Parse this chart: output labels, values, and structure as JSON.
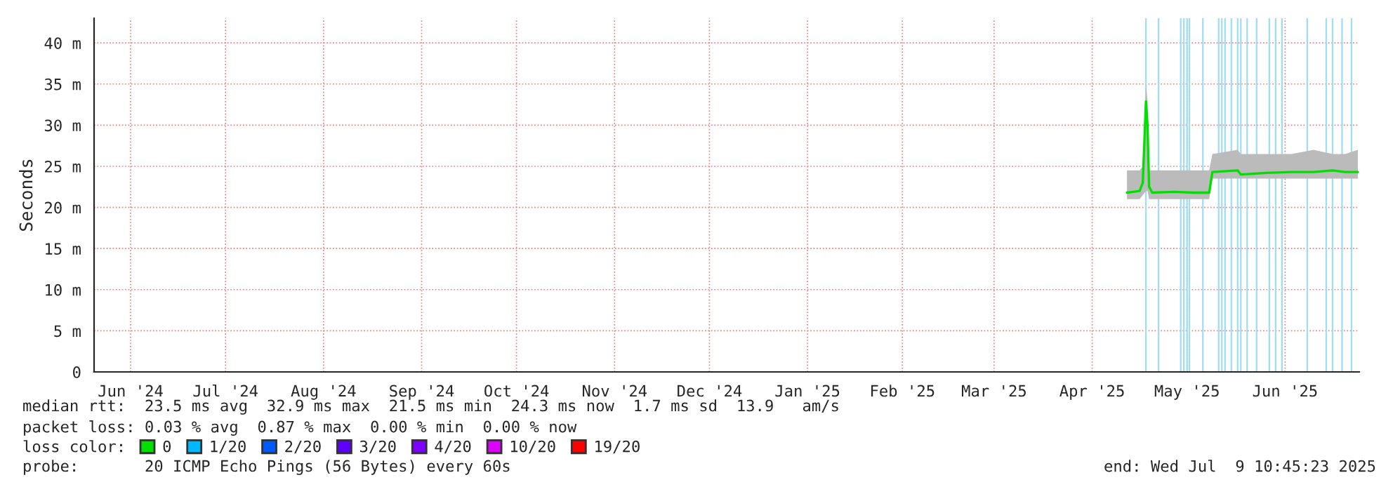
{
  "chart_data": {
    "type": "line",
    "ylabel": "Seconds",
    "x": [
      "2025-04-27",
      "2025-04-29",
      "2025-05-01",
      "2025-05-02",
      "2025-05-03",
      "2025-05-03T12:00",
      "2025-05-04",
      "2025-05-05",
      "2025-05-12",
      "2025-05-18",
      "2025-05-23",
      "2025-05-24",
      "2025-06-01",
      "2025-06-02",
      "2025-06-10",
      "2025-06-18",
      "2025-06-25",
      "2025-07-01",
      "2025-07-05",
      "2025-07-09"
    ],
    "series": [
      {
        "name": "0",
        "color": "#00e000",
        "values": [
          21.8,
          21.9,
          22,
          23,
          32.9,
          30,
          22.5,
          21.8,
          21.9,
          21.8,
          21.8,
          24.3,
          24.5,
          24,
          24.2,
          24.3,
          24.3,
          24.5,
          24.3,
          24.3
        ],
        "lower": [
          21,
          21,
          21,
          21.5,
          22,
          22,
          21,
          21,
          21,
          21,
          21,
          23.5,
          23.5,
          23.5,
          23.5,
          23.5,
          23.5,
          23.5,
          23.5,
          23.5
        ],
        "upper": [
          24.5,
          24.5,
          24.5,
          25,
          35,
          33,
          24.5,
          24.5,
          24.5,
          24.5,
          24.5,
          26.5,
          27,
          26.5,
          26.5,
          26.5,
          27,
          26.5,
          26.5,
          27
        ]
      },
      {
        "name": "1/20",
        "color": "#00b8ff",
        "values": [
          null,
          null,
          null,
          null,
          null,
          null,
          null,
          null,
          null,
          null,
          null,
          null,
          null,
          null,
          null,
          null,
          null,
          null,
          null,
          null
        ]
      },
      {
        "name": "2/20",
        "color": "#0059ff",
        "values": [
          null,
          null,
          null,
          null,
          null,
          null,
          null,
          null,
          null,
          null,
          null,
          null,
          null,
          null,
          null,
          null,
          null,
          null,
          null,
          null
        ]
      },
      {
        "name": "3/20",
        "color": "#5e00ff",
        "values": [
          null,
          null,
          null,
          null,
          null,
          null,
          null,
          null,
          null,
          null,
          null,
          null,
          null,
          null,
          null,
          null,
          null,
          null,
          null,
          null
        ]
      },
      {
        "name": "4/20",
        "color": "#7e00ff",
        "values": [
          null,
          null,
          null,
          null,
          null,
          null,
          null,
          null,
          null,
          null,
          null,
          null,
          null,
          null,
          null,
          null,
          null,
          null,
          null,
          null
        ]
      },
      {
        "name": "10/20",
        "color": "#dd00ff",
        "values": [
          null,
          null,
          null,
          null,
          null,
          null,
          null,
          null,
          null,
          null,
          null,
          null,
          null,
          null,
          null,
          null,
          null,
          null,
          null,
          null
        ]
      },
      {
        "name": "19/20",
        "color": "#ff0000",
        "values": [
          null,
          null,
          null,
          null,
          null,
          null,
          null,
          null,
          null,
          null,
          null,
          null,
          null,
          null,
          null,
          null,
          null,
          null,
          null,
          null
        ]
      }
    ],
    "legend_title": "loss color:",
    "legend": "bottom left",
    "xlim": [
      "2024-06-04T10:45",
      "2025-07-09T10:45"
    ],
    "xticks": [
      {
        "value": "2024-06-16",
        "label": "Jun '24"
      },
      {
        "value": "2024-07-16",
        "label": "Jul '24"
      },
      {
        "value": "2024-08-16",
        "label": "Aug '24"
      },
      {
        "value": "2024-09-16",
        "label": "Sep '24"
      },
      {
        "value": "2024-10-16",
        "label": "Oct '24"
      },
      {
        "value": "2024-11-16",
        "label": "Nov '24"
      },
      {
        "value": "2024-12-16",
        "label": "Dec '24"
      },
      {
        "value": "2025-01-16",
        "label": "Jan '25"
      },
      {
        "value": "2025-02-15",
        "label": "Feb '25"
      },
      {
        "value": "2025-03-16",
        "label": "Mar '25"
      },
      {
        "value": "2025-04-16",
        "label": "Apr '25"
      },
      {
        "value": "2025-05-16",
        "label": "May '25"
      },
      {
        "value": "2025-06-16",
        "label": "Jun '25"
      }
    ],
    "ylim": [
      0,
      43
    ],
    "yticks": [
      0,
      {
        "value": 5,
        "label": "5 m"
      },
      {
        "value": 10,
        "label": "10 m"
      },
      {
        "value": 15,
        "label": "15 m"
      },
      {
        "value": 20,
        "label": "20 m"
      },
      {
        "value": 25,
        "label": "25 m"
      },
      {
        "value": 30,
        "label": "30 m"
      },
      {
        "value": 35,
        "label": "35 m"
      },
      {
        "value": 40,
        "label": "40 m"
      }
    ],
    "grid": true,
    "line_style": "solid",
    "ref_lines": [
      {
        "axis": "x",
        "value": "2025-05-03",
        "color": "#9fdcf5"
      },
      {
        "axis": "x",
        "value": "2025-05-07",
        "color": "#9fdcf5"
      },
      {
        "axis": "x",
        "value": "2025-05-14",
        "color": "#9fdcf5"
      },
      {
        "axis": "x",
        "value": "2025-05-15",
        "color": "#9fdcf5"
      },
      {
        "axis": "x",
        "value": "2025-05-16",
        "color": "#9fdcf5"
      },
      {
        "axis": "x",
        "value": "2025-05-16T18:00",
        "color": "#9fdcf5"
      },
      {
        "axis": "x",
        "value": "2025-05-21",
        "color": "#9fdcf5"
      },
      {
        "axis": "x",
        "value": "2025-05-26",
        "color": "#9fdcf5"
      },
      {
        "axis": "x",
        "value": "2025-05-27",
        "color": "#9fdcf5"
      },
      {
        "axis": "x",
        "value": "2025-05-28",
        "color": "#9fdcf5"
      },
      {
        "axis": "x",
        "value": "2025-05-30",
        "color": "#9fdcf5"
      },
      {
        "axis": "x",
        "value": "2025-06-01",
        "color": "#9fdcf5"
      },
      {
        "axis": "x",
        "value": "2025-06-02",
        "color": "#9fdcf5"
      },
      {
        "axis": "x",
        "value": "2025-06-04",
        "color": "#9fdcf5"
      },
      {
        "axis": "x",
        "value": "2025-06-07",
        "color": "#9fdcf5"
      },
      {
        "axis": "x",
        "value": "2025-06-11",
        "color": "#9fdcf5"
      },
      {
        "axis": "x",
        "value": "2025-06-13",
        "color": "#9fdcf5"
      },
      {
        "axis": "x",
        "value": "2025-06-15",
        "color": "#9fdcf5"
      },
      {
        "axis": "x",
        "value": "2025-06-23",
        "color": "#9fdcf5"
      },
      {
        "axis": "x",
        "value": "2025-06-29",
        "color": "#9fdcf5"
      },
      {
        "axis": "x",
        "value": "2025-07-01",
        "color": "#9fdcf5"
      },
      {
        "axis": "x",
        "value": "2025-07-04",
        "color": "#9fdcf5"
      },
      {
        "axis": "x",
        "value": "2025-07-07",
        "color": "#9fdcf5"
      }
    ],
    "annotations": [
      "median rtt:  23.5 ms avg  32.9 ms max  21.5 ms min  24.3 ms now  1.7 ms sd  13.9   am/s",
      "packet loss: 0.03 % avg  0.87 % max  0.00 % min  0.00 % now",
      "probe:       20 ICMP Echo Pings (56 Bytes) every 60s",
      "end: Wed Jul  9 10:45:23 2025"
    ]
  }
}
